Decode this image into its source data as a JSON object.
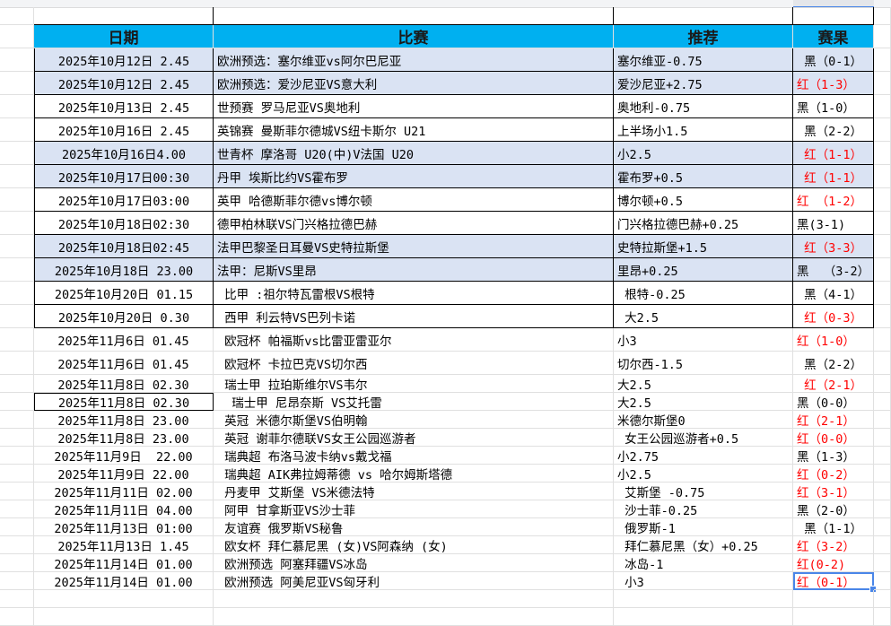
{
  "header": {
    "date": "日期",
    "match": "比赛",
    "recommend": "推荐",
    "result": "赛果"
  },
  "colors": {
    "header_bg": "#00b0f0",
    "highlight_bg": "#dae3f3",
    "win": "#ff0000",
    "loss": "#000000",
    "selection": "#4a86e8"
  },
  "rows": [
    {
      "date": "2025年10月12日 2.45",
      "match": "欧洲预选：塞尔维亚vs阿尔巴尼亚",
      "recommend": "塞尔维亚-0.75",
      "result": " 黑（0-1）",
      "win": false
    },
    {
      "date": "2025年10月12日 2.45",
      "match": "欧洲预选：爱沙尼亚VS意大利",
      "recommend": "爱沙尼亚+2.75",
      "result": "红（1-3）",
      "win": true
    },
    {
      "date": "2025年10月13日 2.45",
      "match": "世预赛 罗马尼亚VS奥地利",
      "recommend": "奥地利-0.75",
      "result": "黑（1-0）",
      "win": false
    },
    {
      "date": "2025年10月16日 2.45",
      "match": "英锦赛 曼斯菲尔德城VS纽卡斯尔 U21",
      "recommend": "上半场小1.5",
      "result": " 黑（2-2）",
      "win": false
    },
    {
      "date": "2025年10月16日4.00",
      "match": "世青杯 摩洛哥 U20(中)V法国 U20",
      "recommend": "小2.5",
      "result": " 红（1-1）",
      "win": true
    },
    {
      "date": "2025年10月17日00:30",
      "match": "丹甲 埃斯比约VS霍布罗",
      "recommend": "霍布罗+0.5",
      "result": " 红（1-1）",
      "win": true
    },
    {
      "date": "2025年10月17日03:00",
      "match": "英甲 哈德斯菲尔德vs博尔顿",
      "recommend": "博尔顿+0.5",
      "result": "红 （1-2）",
      "win": true
    },
    {
      "date": "2025年10月18日02:30",
      "match": "德甲柏林联VS门兴格拉德巴赫",
      "recommend": "门兴格拉德巴赫+0.25",
      "result": "黑(3-1)",
      "win": false
    },
    {
      "date": "2025年10月18日02:45",
      "match": "法甲巴黎圣日耳曼VS史特拉斯堡",
      "recommend": "史特拉斯堡+1.5",
      "result": " 红（3-3）",
      "win": true
    },
    {
      "date": "2025年10月18日 23.00",
      "match": "法甲：尼斯VS里昂",
      "recommend": "里昂+0.25",
      "result": "黑  （3-2）",
      "win": false
    },
    {
      "date": "2025年10月20日 01.15",
      "match": " 比甲 :祖尔特瓦雷根VS根特",
      "recommend": " 根特-0.25",
      "result": " 黑（4-1）",
      "win": false
    },
    {
      "date": "2025年10月20日 0.30",
      "match": " 西甲 利云特VS巴列卡诺",
      "recommend": " 大2.5",
      "result": " 红（0-3）",
      "win": true
    },
    {
      "date": "2025年11月6日 01.45",
      "match": " 欧冠杯 帕福斯vs比雷亚雷亚尔",
      "recommend": "小3",
      "result": "红（1-0）",
      "win": true
    },
    {
      "date": "2025年11月6日 01.45",
      "match": " 欧冠杯 卡拉巴克VS切尔西",
      "recommend": "切尔西-1.5",
      "result": " 黑（2-2）",
      "win": false
    },
    {
      "date": "2025年11月8日 02.30",
      "match": " 瑞士甲 拉珀斯维尔VS韦尔",
      "recommend": "大2.5",
      "result": " 红（2-1）",
      "win": true
    },
    {
      "date": "2025年11月8日 02.30",
      "match": "  瑞士甲 尼昂奈斯 VS艾托雷",
      "recommend": "大2.5",
      "result": "黑（0-0）",
      "win": false
    },
    {
      "date": "2025年11月8日 23.00",
      "match": " 英冠 米德尔斯堡VS伯明翰",
      "recommend": "米德尔斯堡0",
      "result": "红（2-1）",
      "win": true
    },
    {
      "date": "2025年11月8日 23.00",
      "match": " 英冠 谢菲尔德联VS女王公园巡游者",
      "recommend": " 女王公园巡游者+0.5",
      "result": "红（0-0）",
      "win": true
    },
    {
      "date": "2025年11月9日  22.00",
      "match": " 瑞典超 布洛马波卡纳vs戴戈福",
      "recommend": "小2.75",
      "result": "黑（1-3）",
      "win": false
    },
    {
      "date": "2025年11月9日 22.00",
      "match": " 瑞典超 AIK弗拉姆蒂德 vs 哈尔姆斯塔德",
      "recommend": "小2.5",
      "result": "红（0-2）",
      "win": true
    },
    {
      "date": "2025年11月11日 02.00",
      "match": " 丹麦甲 艾斯堡 VS米德法特",
      "recommend": " 艾斯堡 -0.75",
      "result": "红（3-1）",
      "win": true
    },
    {
      "date": "2025年11月11日 04.00",
      "match": " 阿甲 甘拿斯亚VS沙士菲",
      "recommend": " 沙士菲-0.25",
      "result": "黑（2-0）",
      "win": false
    },
    {
      "date": "2025年11月13日 01:00",
      "match": " 友谊赛 俄罗斯VS秘鲁",
      "recommend": " 俄罗斯-1",
      "result": " 黑（1-1）",
      "win": false
    },
    {
      "date": "2025年11月13日 1.45",
      "match": " 欧女杯 拜仁慕尼黑 (女)VS阿森纳 (女)",
      "recommend": " 拜仁慕尼黑（女）+0.25",
      "result": "红（3-2）",
      "win": true
    },
    {
      "date": "2025年11月14日 01.00",
      "match": " 欧洲预选 阿塞拜疆VS冰岛",
      "recommend": " 冰岛-1",
      "result": "红(0-2)",
      "win": true
    },
    {
      "date": "2025年11月14日 01.00",
      "match": " 欧洲预选 阿美尼亚VS匈牙利",
      "recommend": " 小3",
      "result": "红（0-1）",
      "win": true
    }
  ]
}
